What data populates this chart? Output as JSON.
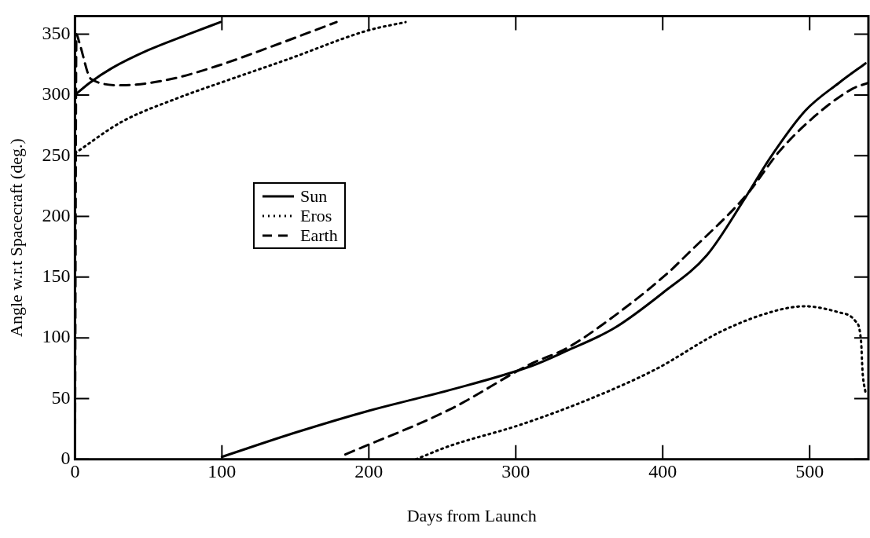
{
  "chart_data": {
    "type": "line",
    "xlabel": "Days from Launch",
    "ylabel": "Angle w.r.t Spacecraft (deg.)",
    "xlim": [
      0,
      540
    ],
    "ylim": [
      0,
      365
    ],
    "xticks": [
      0,
      100,
      200,
      300,
      400,
      500
    ],
    "yticks": [
      0,
      50,
      100,
      150,
      200,
      250,
      300,
      350
    ],
    "grid": false,
    "legend": "center left",
    "marker": "none",
    "series": [
      {
        "name": "Sun",
        "color": "#000000",
        "line_style": "solid",
        "x": [
          0,
          10,
          25,
          50,
          75,
          99,
          null,
          100,
          150,
          200,
          255,
          311,
          334,
          367,
          400,
          430,
          456,
          473,
          497,
          520,
          538
        ],
        "values": [
          300,
          310,
          322,
          337,
          349,
          360,
          null,
          2,
          22,
          40,
          57,
          77,
          89,
          108,
          137,
          168,
          215,
          248,
          287,
          310,
          326
        ]
      },
      {
        "name": "Eros",
        "color": "#000000",
        "line_style": "dotted",
        "x": [
          0,
          32,
          69,
          106,
          144,
          199,
          225,
          null,
          232,
          255,
          302,
          349,
          395,
          441,
          479,
          497,
          520,
          531,
          535,
          536,
          538
        ],
        "values": [
          252,
          278,
          297,
          313,
          329,
          353,
          360,
          null,
          0,
          11,
          28,
          49,
          74,
          106,
          123,
          126,
          121,
          114,
          97,
          72,
          55
        ]
      },
      {
        "name": "Earth",
        "color": "#000000",
        "line_style": "dashed",
        "x": [
          0,
          1,
          3,
          11,
          32,
          65,
          97,
          134,
          178,
          null,
          184,
          255,
          311,
          334,
          367,
          404,
          416,
          458,
          479,
          503,
          529,
          540
        ],
        "values": [
          0,
          350,
          343,
          313,
          308,
          313,
          324,
          340,
          360,
          null,
          4,
          41,
          79,
          91,
          118,
          154,
          168,
          219,
          253,
          282,
          305,
          310
        ]
      }
    ]
  }
}
